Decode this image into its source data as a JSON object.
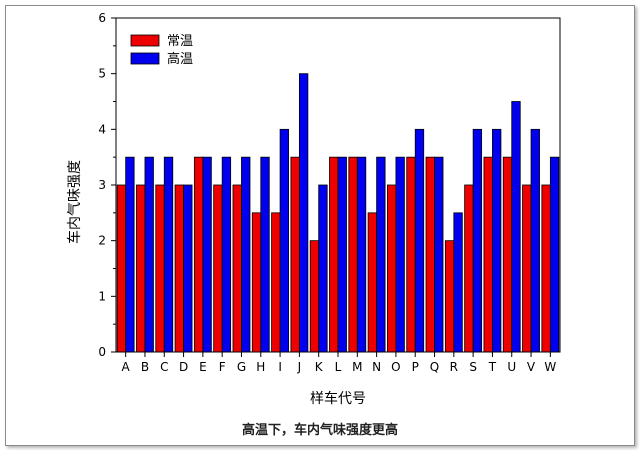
{
  "caption": "高温下，车内气味强度更高",
  "chart_data": {
    "type": "bar",
    "title": "",
    "xlabel": "样车代号",
    "ylabel": "车内气味强度",
    "ylim": [
      0,
      6
    ],
    "yticks": [
      0,
      1,
      2,
      3,
      4,
      5,
      6
    ],
    "grid": false,
    "legend_position": "top-left",
    "categories": [
      "A",
      "B",
      "C",
      "D",
      "E",
      "F",
      "G",
      "H",
      "I",
      "J",
      "K",
      "L",
      "M",
      "N",
      "O",
      "P",
      "Q",
      "R",
      "S",
      "T",
      "U",
      "V",
      "W"
    ],
    "series": [
      {
        "name": "常温",
        "color": "#ee0000",
        "values": [
          3,
          3,
          3,
          3,
          3.5,
          3,
          3,
          2.5,
          2.5,
          3.5,
          2,
          3.5,
          3.5,
          2.5,
          3,
          3.5,
          3.5,
          2,
          3,
          3.5,
          3.5,
          3,
          3
        ]
      },
      {
        "name": "高温",
        "color": "#0000ee",
        "values": [
          3.5,
          3.5,
          3.5,
          3,
          3.5,
          3.5,
          3.5,
          3.5,
          4,
          5,
          3,
          3.5,
          3.5,
          3.5,
          3.5,
          4,
          3.5,
          2.5,
          4,
          4,
          4.5,
          4,
          3.5
        ]
      }
    ]
  }
}
